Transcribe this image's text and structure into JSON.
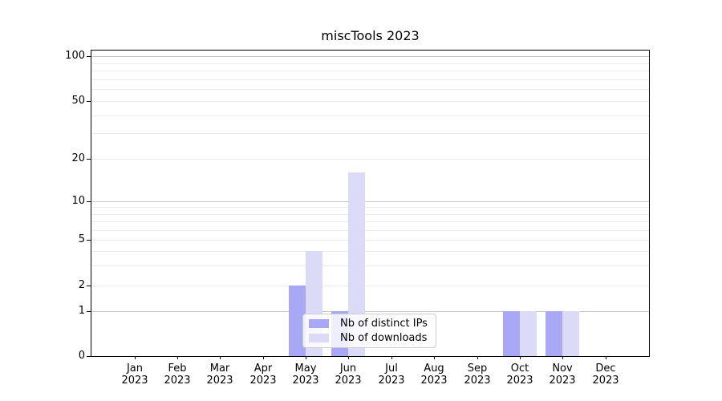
{
  "title": "miscTools 2023",
  "chart_data": {
    "type": "bar",
    "title": "miscTools 2023",
    "categories": [
      "Jan 2023",
      "Feb 2023",
      "Mar 2023",
      "Apr 2023",
      "May 2023",
      "Jun 2023",
      "Jul 2023",
      "Aug 2023",
      "Sep 2023",
      "Oct 2023",
      "Nov 2023",
      "Dec 2023"
    ],
    "x_tick_months": [
      "Jan",
      "Feb",
      "Mar",
      "Apr",
      "May",
      "Jun",
      "Jul",
      "Aug",
      "Sep",
      "Oct",
      "Nov",
      "Dec"
    ],
    "x_tick_year": "2023",
    "series": [
      {
        "name": "Nb of distinct IPs",
        "color": "#a8a8f5",
        "values": [
          0,
          0,
          0,
          0,
          2,
          1,
          0,
          0,
          0,
          1,
          1,
          0
        ]
      },
      {
        "name": "Nb of downloads",
        "color": "#dbdbf8",
        "values": [
          0,
          0,
          0,
          0,
          4,
          16,
          0,
          0,
          0,
          1,
          1,
          0
        ]
      }
    ],
    "yscale": "symlog",
    "ylim": [
      0,
      115
    ],
    "y_ticks": [
      0,
      1,
      2,
      5,
      10,
      20,
      50,
      100
    ],
    "y_decade_ticks": [
      1,
      10,
      100
    ],
    "y_minor_gridlines": [
      3,
      4,
      6,
      7,
      8,
      9,
      30,
      40,
      60,
      70,
      80,
      90
    ],
    "grid": "both",
    "legend_position": "lower center",
    "colors": {
      "major_grid": "#c8c8c8",
      "minor_grid": "#ececec",
      "axis": "#000000",
      "text": "#000000"
    }
  }
}
